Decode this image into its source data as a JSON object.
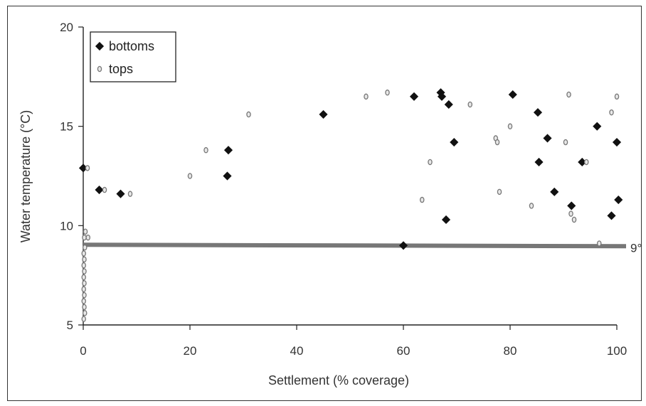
{
  "chart_data": {
    "type": "scatter",
    "xlabel": "Settlement (% coverage)",
    "ylabel": "Water temperature (°C)",
    "xlim": [
      0,
      100
    ],
    "ylim": [
      5,
      20
    ],
    "x_ticks": [
      0,
      20,
      40,
      60,
      80,
      100
    ],
    "y_ticks": [
      5,
      10,
      15,
      20
    ],
    "grid": false,
    "legend_position": "top-left",
    "threshold": {
      "value": 9,
      "label": "9°",
      "color": "#777777"
    },
    "series": [
      {
        "name": "bottoms",
        "marker": "diamond",
        "color": "#111111",
        "points": [
          [
            0,
            12.9
          ],
          [
            3,
            11.8
          ],
          [
            7,
            11.6
          ],
          [
            27,
            12.5
          ],
          [
            27.2,
            13.8
          ],
          [
            45,
            15.6
          ],
          [
            60,
            9.0
          ],
          [
            62,
            16.5
          ],
          [
            67,
            16.7
          ],
          [
            67.2,
            16.5
          ],
          [
            68,
            10.3
          ],
          [
            68.5,
            16.1
          ],
          [
            69.5,
            14.2
          ],
          [
            80.5,
            16.6
          ],
          [
            85.2,
            15.7
          ],
          [
            85.4,
            13.2
          ],
          [
            87,
            14.4
          ],
          [
            88.3,
            11.7
          ],
          [
            91.5,
            11.0
          ],
          [
            93.5,
            13.2
          ],
          [
            96.3,
            15.0
          ],
          [
            99,
            10.5
          ],
          [
            100,
            14.2
          ],
          [
            100.3,
            11.3
          ]
        ]
      },
      {
        "name": "tops",
        "marker": "circle",
        "color": "#777777",
        "points": [
          [
            0.4,
            9.7
          ],
          [
            0.2,
            9.4
          ],
          [
            0.9,
            9.4
          ],
          [
            0.3,
            8.9
          ],
          [
            0.1,
            8.6
          ],
          [
            0.2,
            8.3
          ],
          [
            0.1,
            8.0
          ],
          [
            0.2,
            7.7
          ],
          [
            0.1,
            7.4
          ],
          [
            0.2,
            7.1
          ],
          [
            0.1,
            6.8
          ],
          [
            0.2,
            6.5
          ],
          [
            0.1,
            6.2
          ],
          [
            0.2,
            5.9
          ],
          [
            0.3,
            5.6
          ],
          [
            0.1,
            5.3
          ],
          [
            0.8,
            12.9
          ],
          [
            4,
            11.8
          ],
          [
            8.8,
            11.6
          ],
          [
            20,
            12.5
          ],
          [
            23,
            13.8
          ],
          [
            31,
            15.6
          ],
          [
            53,
            16.5
          ],
          [
            57,
            16.7
          ],
          [
            63.5,
            11.3
          ],
          [
            65,
            13.2
          ],
          [
            72.5,
            16.1
          ],
          [
            77.3,
            14.4
          ],
          [
            77.6,
            14.2
          ],
          [
            78,
            11.7
          ],
          [
            80,
            15.0
          ],
          [
            84,
            11.0
          ],
          [
            90.4,
            14.2
          ],
          [
            91,
            16.6
          ],
          [
            91.4,
            10.6
          ],
          [
            92,
            10.3
          ],
          [
            94.3,
            13.2
          ],
          [
            96.7,
            9.1
          ],
          [
            99,
            15.7
          ],
          [
            100,
            16.5
          ]
        ]
      }
    ]
  }
}
